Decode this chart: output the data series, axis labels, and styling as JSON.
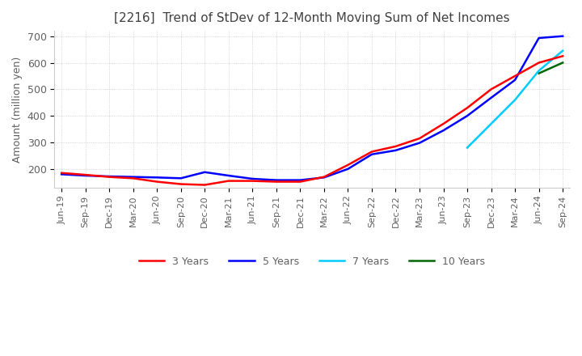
{
  "title": "[2216]  Trend of StDev of 12-Month Moving Sum of Net Incomes",
  "ylabel": "Amount (million yen)",
  "ylim": [
    130,
    720
  ],
  "yticks": [
    200,
    300,
    400,
    500,
    600,
    700
  ],
  "line_colors": {
    "3 Years": "#ff0000",
    "5 Years": "#0000ff",
    "7 Years": "#00ccff",
    "10 Years": "#006600"
  },
  "x_labels": [
    "Jun-19",
    "Sep-19",
    "Dec-19",
    "Mar-20",
    "Jun-20",
    "Sep-20",
    "Dec-20",
    "Mar-21",
    "Jun-21",
    "Sep-21",
    "Dec-21",
    "Mar-22",
    "Jun-22",
    "Sep-22",
    "Dec-22",
    "Mar-23",
    "Jun-23",
    "Sep-23",
    "Dec-23",
    "Mar-24",
    "Jun-24",
    "Sep-24"
  ],
  "series": {
    "3 Years": [
      185,
      178,
      170,
      165,
      152,
      143,
      140,
      155,
      155,
      152,
      152,
      170,
      215,
      265,
      285,
      315,
      370,
      430,
      500,
      550,
      600,
      625
    ],
    "5 Years": [
      180,
      175,
      172,
      170,
      168,
      165,
      188,
      175,
      163,
      158,
      158,
      168,
      200,
      255,
      270,
      298,
      345,
      400,
      468,
      535,
      693,
      700
    ],
    "7 Years": [
      null,
      null,
      null,
      null,
      null,
      null,
      null,
      null,
      null,
      null,
      null,
      null,
      null,
      null,
      null,
      null,
      null,
      280,
      370,
      460,
      570,
      645
    ],
    "10 Years": [
      null,
      null,
      null,
      null,
      null,
      null,
      null,
      null,
      null,
      null,
      null,
      null,
      null,
      null,
      null,
      null,
      null,
      null,
      null,
      null,
      560,
      600
    ]
  },
  "background_color": "#ffffff",
  "grid_color": "#aaaaaa",
  "title_color": "#404040",
  "label_color": "#606060"
}
